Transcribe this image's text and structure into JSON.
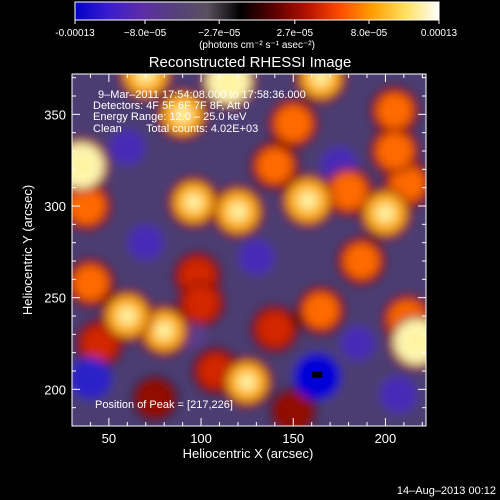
{
  "chart_data": {
    "type": "heatmap",
    "title": "Reconstructed RHESSI Image",
    "xlabel": "Heliocentric X (arcsec)",
    "ylabel": "Heliocentric Y (arcsec)",
    "xlim": [
      30,
      222
    ],
    "ylim": [
      180,
      372
    ],
    "x_ticks": [
      50,
      100,
      150,
      200
    ],
    "y_ticks": [
      200,
      250,
      300,
      350
    ],
    "colorbar": {
      "range": [
        -0.00013,
        0.00013
      ],
      "tick_values": [
        -0.00013,
        -8e-05,
        -2.7e-05,
        2.7e-05,
        8e-05,
        0.00013
      ],
      "tick_labels": [
        "-0.00013",
        "−8.0e−05",
        "−2.7e−05",
        "2.7e−05",
        "8.0e−05",
        "0.00013"
      ],
      "unit_text": "(photons cm⁻² s⁻¹ asec⁻²)",
      "colormap": [
        "#0000c8",
        "#3a1cd0",
        "#5c2ca8",
        "#55407a",
        "#5a5060",
        "#000000",
        "#5a0000",
        "#b41000",
        "#ff4a00",
        "#ffa000",
        "#ffe060",
        "#ffffff"
      ]
    },
    "annotations": {
      "time_range": "9–Mar–2011 17:54:08.000 to 17:58:36.000",
      "detectors": "Detectors: 4F 5F 6F 7F 8F, Att 0",
      "energy": "Energy Range: 12.0 – 25.0 keV",
      "clean": "Clean",
      "total_counts": "Total counts: 4.02E+03",
      "peak": "Position of Peak = [217,226]"
    },
    "peak_position": [
      217,
      226
    ],
    "features": [
      {
        "x": 70,
        "y": 372,
        "v": 0.8
      },
      {
        "x": 115,
        "y": 368,
        "v": 0.85
      },
      {
        "x": 165,
        "y": 370,
        "v": 0.7
      },
      {
        "x": 35,
        "y": 322,
        "v": 0.9
      },
      {
        "x": 90,
        "y": 350,
        "v": 0.7
      },
      {
        "x": 150,
        "y": 345,
        "v": 0.6
      },
      {
        "x": 205,
        "y": 352,
        "v": 0.55
      },
      {
        "x": 205,
        "y": 330,
        "v": 0.6
      },
      {
        "x": 60,
        "y": 332,
        "v": -0.55
      },
      {
        "x": 175,
        "y": 322,
        "v": -0.6
      },
      {
        "x": 140,
        "y": 322,
        "v": 0.55
      },
      {
        "x": 120,
        "y": 297,
        "v": 0.75
      },
      {
        "x": 96,
        "y": 302,
        "v": 0.7
      },
      {
        "x": 158,
        "y": 303,
        "v": 0.8
      },
      {
        "x": 180,
        "y": 308,
        "v": 0.6
      },
      {
        "x": 200,
        "y": 296,
        "v": 0.75
      },
      {
        "x": 212,
        "y": 312,
        "v": 0.55
      },
      {
        "x": 38,
        "y": 300,
        "v": 0.6
      },
      {
        "x": 70,
        "y": 280,
        "v": -0.55
      },
      {
        "x": 130,
        "y": 272,
        "v": -0.55
      },
      {
        "x": 98,
        "y": 262,
        "v": 0.5
      },
      {
        "x": 187,
        "y": 270,
        "v": 0.55
      },
      {
        "x": 40,
        "y": 258,
        "v": 0.55
      },
      {
        "x": 60,
        "y": 240,
        "v": 0.75
      },
      {
        "x": 80,
        "y": 232,
        "v": 0.7
      },
      {
        "x": 45,
        "y": 225,
        "v": 0.5
      },
      {
        "x": 100,
        "y": 247,
        "v": 0.5
      },
      {
        "x": 140,
        "y": 233,
        "v": 0.5
      },
      {
        "x": 165,
        "y": 243,
        "v": 0.55
      },
      {
        "x": 212,
        "y": 238,
        "v": 0.65
      },
      {
        "x": 217,
        "y": 226,
        "v": 0.9
      },
      {
        "x": 125,
        "y": 204,
        "v": 0.7
      },
      {
        "x": 108,
        "y": 210,
        "v": 0.45
      },
      {
        "x": 95,
        "y": 230,
        "v": -0.4
      },
      {
        "x": 40,
        "y": 206,
        "v": -0.8
      },
      {
        "x": 163,
        "y": 207,
        "v": -0.95
      },
      {
        "x": 207,
        "y": 197,
        "v": -0.6
      },
      {
        "x": 185,
        "y": 225,
        "v": -0.5
      },
      {
        "x": 75,
        "y": 195,
        "v": 0.3
      },
      {
        "x": 150,
        "y": 188,
        "v": 0.35
      }
    ]
  },
  "footer_date": "14–Aug–2013 00:12"
}
